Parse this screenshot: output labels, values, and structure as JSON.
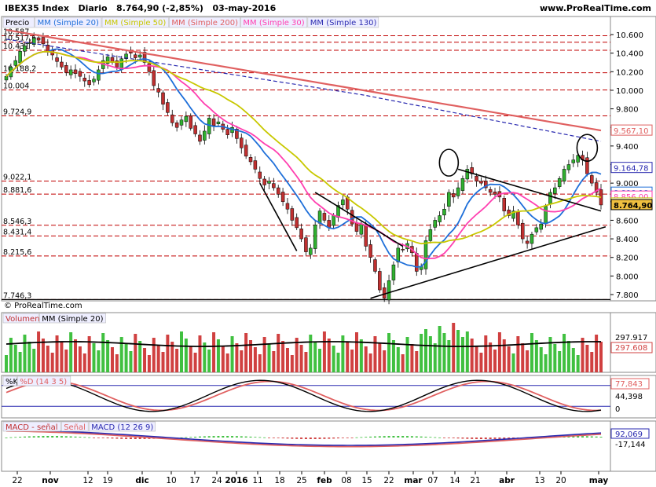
{
  "header": {
    "symbol": "IBEX35 Index",
    "period": "Diario",
    "last": "8.764,90 (-2,85%)",
    "date": "03-may-2016",
    "site": "www.ProRealTime.com"
  },
  "price_panel": {
    "tabs": [
      "Precio",
      "MM (Simple 20)",
      "MM (Simple 50)",
      "MM (Simple 200)",
      "MM (Simple 30)",
      "MM (Simple 130)"
    ],
    "tab_colors": [
      "#000000",
      "#1e6fd9",
      "#c8c800",
      "#e06060",
      "#ff3fb0",
      "#2a2ab0"
    ],
    "copyright": "© ProRealTime.com",
    "left_levels": [
      "10.587",
      "10.517,6",
      "10.431",
      "10.188,2",
      "10.004",
      "9.724,9",
      "9.022,1",
      "8.881,6",
      "8.546,3",
      "8.431,4",
      "8.215,6",
      "7.746,3"
    ],
    "right_ticks": [
      "10.600",
      "10.400",
      "10.200",
      "10.000",
      "9.800",
      "9.600",
      "9.400",
      "9.200",
      "9.000",
      "8.800",
      "8.600",
      "8.400",
      "8.200",
      "8.000",
      "7.800"
    ],
    "right_tags": [
      {
        "text": "9.567,10",
        "color": "#e06060"
      },
      {
        "text": "9.164,78",
        "color": "#2a2ab0"
      },
      {
        "text": "8.898,18",
        "color": "#1e6fd9"
      },
      {
        "text": "8.856,00",
        "color": "#ff3fb0"
      },
      {
        "text": "8.782,01",
        "color": "#c8c800"
      },
      {
        "text": "8.764,90",
        "color": "#000000"
      }
    ]
  },
  "volume_panel": {
    "tabs": [
      "Volumen",
      "MM (Simple 20)"
    ],
    "right_labels": [
      "297.917",
      "297.608"
    ]
  },
  "stoch_panel": {
    "tabs": [
      "%K",
      "%D (14 3 5)"
    ],
    "right_labels": [
      "77,843",
      "44,398",
      "0"
    ]
  },
  "macd_panel": {
    "tabs": [
      "MACD - señal",
      "Señal",
      "MACD (12 26 9)"
    ],
    "right_labels": [
      "92,069",
      "-17,144"
    ]
  },
  "x_axis": [
    "22",
    "nov",
    "12",
    "19",
    "dic",
    "10",
    "17",
    "24",
    "2016",
    "11",
    "18",
    "25",
    "feb",
    "08",
    "15",
    "22",
    "mar",
    "07",
    "14",
    "21",
    "abr",
    "13",
    "20",
    "may"
  ],
  "chart_data": {
    "type": "candlestick",
    "title": "IBEX35 Index Diario",
    "ylim": [
      7700,
      10650
    ],
    "x_range": [
      "2015-10-20",
      "2016-05-03"
    ],
    "close_series": [
      10150,
      10250,
      10320,
      10420,
      10480,
      10510,
      10560,
      10540,
      10500,
      10420,
      10380,
      10310,
      10250,
      10190,
      10220,
      10180,
      10150,
      10100,
      10060,
      10120,
      10220,
      10320,
      10360,
      10300,
      10250,
      10340,
      10390,
      10400,
      10350,
      10380,
      10300,
      10200,
      10050,
      9980,
      9850,
      9760,
      9650,
      9600,
      9680,
      9720,
      9590,
      9530,
      9450,
      9560,
      9700,
      9620,
      9660,
      9580,
      9520,
      9600,
      9480,
      9380,
      9290,
      9230,
      9150,
      9050,
      8980,
      9020,
      8950,
      8880,
      8800,
      8720,
      8600,
      8520,
      8400,
      8260,
      8300,
      8550,
      8700,
      8600,
      8520,
      8650,
      8760,
      8820,
      8720,
      8560,
      8480,
      8560,
      8320,
      8200,
      8050,
      7850,
      7760,
      7950,
      8120,
      8300,
      8280,
      8350,
      8250,
      8050,
      8100,
      8380,
      8500,
      8600,
      8650,
      8720,
      8900,
      8850,
      8950,
      9050,
      9150,
      9100,
      9020,
      9000,
      8950,
      8900,
      8880,
      8850,
      8700,
      8650,
      8700,
      8550,
      8400,
      8350,
      8450,
      8520,
      8560,
      8750,
      8900,
      8950,
      9050,
      9150,
      9200,
      9250,
      9300,
      9250,
      9100,
      9000,
      8900,
      8764.9
    ],
    "series": [
      {
        "name": "MM (Simple 20)",
        "color": "#1e6fd9",
        "last": 8898.18
      },
      {
        "name": "MM (Simple 50)",
        "color": "#c8c800",
        "last": 8782.01
      },
      {
        "name": "MM (Simple 200)",
        "color": "#e06060",
        "last": 9567.1
      },
      {
        "name": "MM (Simple 30)",
        "color": "#ff3fb0",
        "last": 8856.0
      },
      {
        "name": "MM (Simple 130)",
        "color": "#2a2ab0",
        "last": 9164.78
      }
    ],
    "support_levels": [
      10587,
      10517.6,
      10431,
      10188.2,
      10004,
      9724.9,
      9022.1,
      8881.6,
      8546.3,
      8431.4,
      8215.6,
      7746.3
    ],
    "volume_ma_last": 297608,
    "stochastic_last": {
      "k": 44.398,
      "d": 77.843
    },
    "macd_last": {
      "macd": 92.069,
      "hist": -17.144
    }
  }
}
